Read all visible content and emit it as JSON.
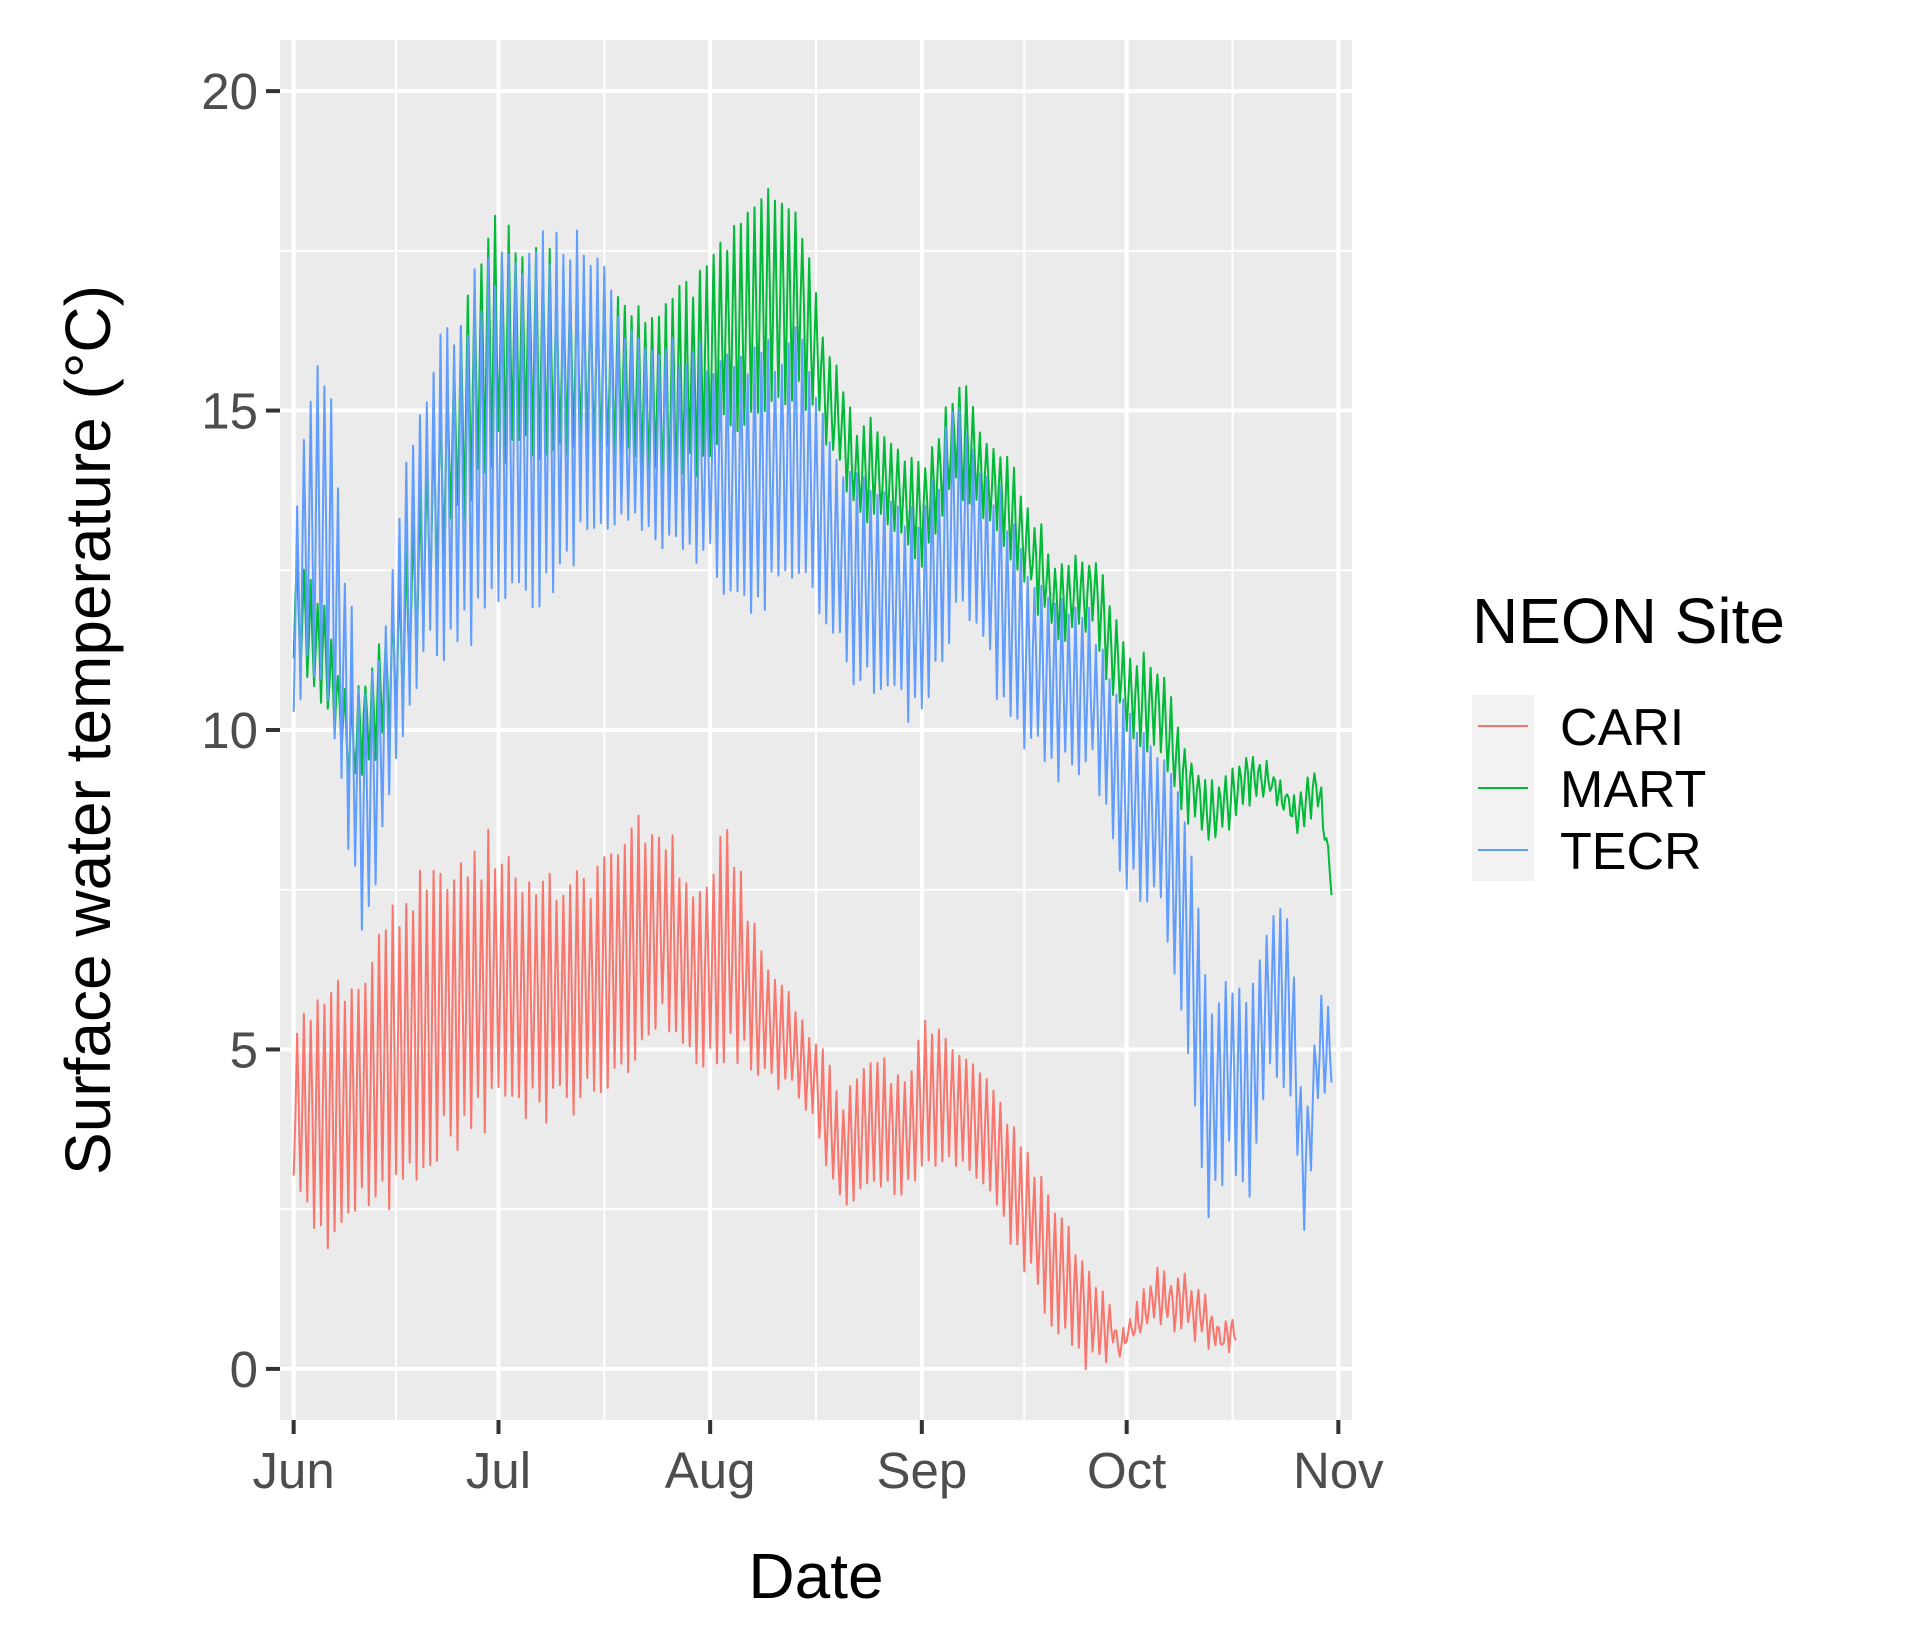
{
  "chart_data": {
    "type": "line",
    "xlabel": "Date",
    "ylabel": "Surface water temperature (°C)",
    "x_ticks": [
      "Jun",
      "Jul",
      "Aug",
      "Sep",
      "Oct",
      "Nov"
    ],
    "y_ticks": [
      "0",
      "5",
      "10",
      "15",
      "20"
    ],
    "xlim": [
      "2019-05-30",
      "2019-11-03"
    ],
    "ylim": [
      -0.8,
      20.8
    ],
    "grid": true,
    "legend": {
      "title": "NEON Site",
      "placement": "right"
    },
    "series": [
      {
        "name": "CARI",
        "color": "#F8766D",
        "end_date": "2019-10-17",
        "envelope": [
          {
            "date": "2019-06-01",
            "low": 3.0,
            "high": 5.2
          },
          {
            "date": "2019-06-05",
            "low": 2.0,
            "high": 5.8
          },
          {
            "date": "2019-06-10",
            "low": 2.5,
            "high": 6.0
          },
          {
            "date": "2019-06-15",
            "low": 2.8,
            "high": 7.0
          },
          {
            "date": "2019-06-20",
            "low": 3.3,
            "high": 7.5
          },
          {
            "date": "2019-06-25",
            "low": 3.6,
            "high": 7.8
          },
          {
            "date": "2019-07-01",
            "low": 4.2,
            "high": 8.2
          },
          {
            "date": "2019-07-05",
            "low": 4.0,
            "high": 7.6
          },
          {
            "date": "2019-07-10",
            "low": 4.2,
            "high": 7.5
          },
          {
            "date": "2019-07-15",
            "low": 4.2,
            "high": 7.8
          },
          {
            "date": "2019-07-20",
            "low": 4.8,
            "high": 8.4
          },
          {
            "date": "2019-07-25",
            "low": 5.4,
            "high": 8.4
          },
          {
            "date": "2019-07-30",
            "low": 4.8,
            "high": 7.4
          },
          {
            "date": "2019-08-04",
            "low": 4.9,
            "high": 8.3
          },
          {
            "date": "2019-08-08",
            "low": 4.7,
            "high": 6.5
          },
          {
            "date": "2019-08-12",
            "low": 4.4,
            "high": 6.0
          },
          {
            "date": "2019-08-16",
            "low": 3.9,
            "high": 5.2
          },
          {
            "date": "2019-08-20",
            "low": 2.6,
            "high": 4.2
          },
          {
            "date": "2019-08-25",
            "low": 2.9,
            "high": 4.8
          },
          {
            "date": "2019-08-30",
            "low": 2.7,
            "high": 4.6
          },
          {
            "date": "2019-09-01",
            "low": 3.3,
            "high": 5.3
          },
          {
            "date": "2019-09-05",
            "low": 3.3,
            "high": 5.1
          },
          {
            "date": "2019-09-10",
            "low": 2.9,
            "high": 4.7
          },
          {
            "date": "2019-09-15",
            "low": 1.9,
            "high": 3.6
          },
          {
            "date": "2019-09-20",
            "low": 0.8,
            "high": 2.6
          },
          {
            "date": "2019-09-25",
            "low": 0.2,
            "high": 1.6
          },
          {
            "date": "2019-09-30",
            "low": 0.3,
            "high": 0.6
          },
          {
            "date": "2019-10-05",
            "low": 0.7,
            "high": 1.5
          },
          {
            "date": "2019-10-10",
            "low": 0.6,
            "high": 1.4
          },
          {
            "date": "2019-10-15",
            "low": 0.2,
            "high": 0.7
          },
          {
            "date": "2019-10-17",
            "low": 0.4,
            "high": 0.6
          }
        ]
      },
      {
        "name": "MART",
        "color": "#00BA38",
        "end_date": "2019-10-31",
        "envelope": [
          {
            "date": "2019-06-01",
            "low": 11.0,
            "high": 13.0
          },
          {
            "date": "2019-06-05",
            "low": 10.5,
            "high": 12.0
          },
          {
            "date": "2019-06-09",
            "low": 9.2,
            "high": 10.4
          },
          {
            "date": "2019-06-13",
            "low": 9.6,
            "high": 11.0
          },
          {
            "date": "2019-06-17",
            "low": 10.3,
            "high": 12.5
          },
          {
            "date": "2019-06-21",
            "low": 12.0,
            "high": 14.6
          },
          {
            "date": "2019-06-25",
            "low": 13.3,
            "high": 16.2
          },
          {
            "date": "2019-06-30",
            "low": 14.2,
            "high": 18.0
          },
          {
            "date": "2019-07-05",
            "low": 14.5,
            "high": 17.5
          },
          {
            "date": "2019-07-10",
            "low": 14.3,
            "high": 17.2
          },
          {
            "date": "2019-07-15",
            "low": 14.2,
            "high": 17.0
          },
          {
            "date": "2019-07-20",
            "low": 14.4,
            "high": 16.5
          },
          {
            "date": "2019-07-25",
            "low": 13.6,
            "high": 16.6
          },
          {
            "date": "2019-07-30",
            "low": 14.2,
            "high": 17.0
          },
          {
            "date": "2019-08-04",
            "low": 14.8,
            "high": 17.8
          },
          {
            "date": "2019-08-09",
            "low": 15.0,
            "high": 18.4
          },
          {
            "date": "2019-08-14",
            "low": 15.4,
            "high": 18.0
          },
          {
            "date": "2019-08-18",
            "low": 14.6,
            "high": 16.0
          },
          {
            "date": "2019-08-22",
            "low": 13.5,
            "high": 14.8
          },
          {
            "date": "2019-08-27",
            "low": 13.2,
            "high": 14.6
          },
          {
            "date": "2019-09-01",
            "low": 12.6,
            "high": 14.0
          },
          {
            "date": "2019-09-06",
            "low": 13.8,
            "high": 15.4
          },
          {
            "date": "2019-09-11",
            "low": 13.2,
            "high": 14.6
          },
          {
            "date": "2019-09-16",
            "low": 12.4,
            "high": 13.6
          },
          {
            "date": "2019-09-21",
            "low": 11.4,
            "high": 12.6
          },
          {
            "date": "2019-09-26",
            "low": 11.6,
            "high": 12.8
          },
          {
            "date": "2019-10-01",
            "low": 10.0,
            "high": 11.2
          },
          {
            "date": "2019-10-06",
            "low": 9.6,
            "high": 11.0
          },
          {
            "date": "2019-10-10",
            "low": 8.6,
            "high": 9.6
          },
          {
            "date": "2019-10-14",
            "low": 8.2,
            "high": 9.2
          },
          {
            "date": "2019-10-18",
            "low": 8.8,
            "high": 9.6
          },
          {
            "date": "2019-10-22",
            "low": 8.9,
            "high": 9.5
          },
          {
            "date": "2019-10-26",
            "low": 8.5,
            "high": 8.9
          },
          {
            "date": "2019-10-29",
            "low": 8.8,
            "high": 9.5
          },
          {
            "date": "2019-10-31",
            "low": 7.5,
            "high": 7.9
          }
        ]
      },
      {
        "name": "TECR",
        "color": "#619CFF",
        "end_date": "2019-10-31",
        "envelope": [
          {
            "date": "2019-06-01",
            "low": 10.0,
            "high": 13.2
          },
          {
            "date": "2019-06-03",
            "low": 11.0,
            "high": 15.2
          },
          {
            "date": "2019-06-06",
            "low": 10.8,
            "high": 15.5
          },
          {
            "date": "2019-06-09",
            "low": 8.2,
            "high": 12.0
          },
          {
            "date": "2019-06-11",
            "low": 6.8,
            "high": 10.6
          },
          {
            "date": "2019-06-13",
            "low": 7.6,
            "high": 10.8
          },
          {
            "date": "2019-06-17",
            "low": 9.8,
            "high": 14.0
          },
          {
            "date": "2019-06-21",
            "low": 11.2,
            "high": 15.8
          },
          {
            "date": "2019-06-25",
            "low": 11.2,
            "high": 16.5
          },
          {
            "date": "2019-06-30",
            "low": 12.2,
            "high": 17.2
          },
          {
            "date": "2019-07-05",
            "low": 12.0,
            "high": 17.5
          },
          {
            "date": "2019-07-10",
            "low": 12.4,
            "high": 17.6
          },
          {
            "date": "2019-07-15",
            "low": 13.0,
            "high": 17.8
          },
          {
            "date": "2019-07-20",
            "low": 13.2,
            "high": 16.2
          },
          {
            "date": "2019-07-25",
            "low": 13.0,
            "high": 16.0
          },
          {
            "date": "2019-07-30",
            "low": 12.8,
            "high": 15.8
          },
          {
            "date": "2019-08-04",
            "low": 12.2,
            "high": 15.6
          },
          {
            "date": "2019-08-09",
            "low": 12.0,
            "high": 15.8
          },
          {
            "date": "2019-08-14",
            "low": 12.6,
            "high": 16.2
          },
          {
            "date": "2019-08-18",
            "low": 11.6,
            "high": 14.6
          },
          {
            "date": "2019-08-22",
            "low": 10.8,
            "high": 14.0
          },
          {
            "date": "2019-08-27",
            "low": 10.6,
            "high": 13.6
          },
          {
            "date": "2019-09-01",
            "low": 10.2,
            "high": 13.2
          },
          {
            "date": "2019-09-06",
            "low": 12.0,
            "high": 15.0
          },
          {
            "date": "2019-09-11",
            "low": 11.0,
            "high": 14.0
          },
          {
            "date": "2019-09-16",
            "low": 9.8,
            "high": 12.6
          },
          {
            "date": "2019-09-21",
            "low": 9.4,
            "high": 12.0
          },
          {
            "date": "2019-09-26",
            "low": 9.4,
            "high": 11.8
          },
          {
            "date": "2019-10-01",
            "low": 7.6,
            "high": 10.2
          },
          {
            "date": "2019-10-06",
            "low": 7.4,
            "high": 9.6
          },
          {
            "date": "2019-10-10",
            "low": 5.2,
            "high": 8.4
          },
          {
            "date": "2019-10-13",
            "low": 2.4,
            "high": 5.6
          },
          {
            "date": "2019-10-16",
            "low": 3.4,
            "high": 6.0
          },
          {
            "date": "2019-10-19",
            "low": 2.8,
            "high": 5.6
          },
          {
            "date": "2019-10-22",
            "low": 4.8,
            "high": 7.2
          },
          {
            "date": "2019-10-25",
            "low": 4.4,
            "high": 7.0
          },
          {
            "date": "2019-10-27",
            "low": 2.2,
            "high": 3.6
          },
          {
            "date": "2019-10-29",
            "low": 4.2,
            "high": 5.6
          },
          {
            "date": "2019-10-31",
            "low": 4.4,
            "high": 5.8
          }
        ]
      }
    ]
  }
}
